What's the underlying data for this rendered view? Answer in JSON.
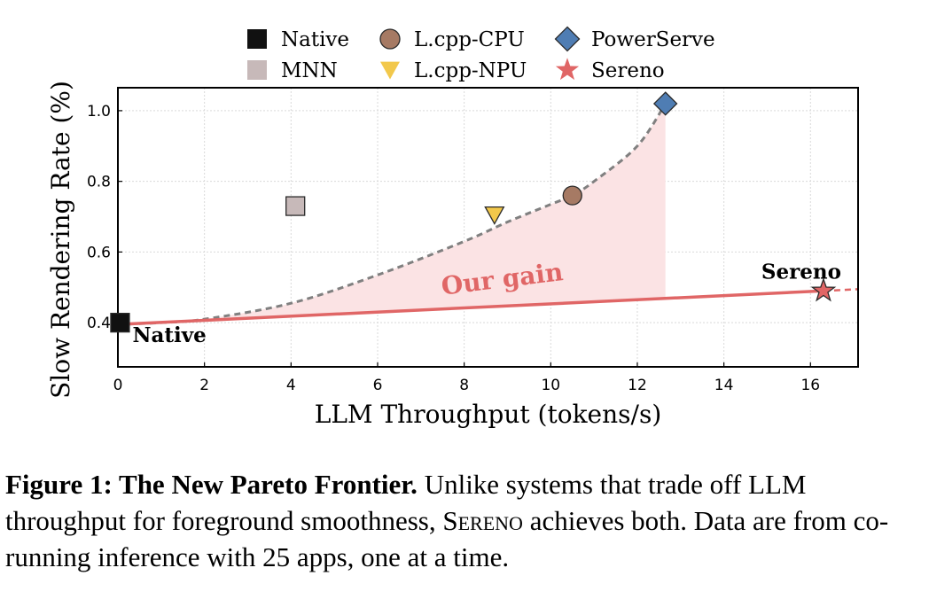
{
  "chart_data": {
    "type": "scatter",
    "xlabel": "LLM Throughput (tokens/s)",
    "ylabel": "Slow Rendering Rate (%)",
    "xlim": [
      0,
      17.1
    ],
    "ylim": [
      0.275,
      1.065
    ],
    "xticks": [
      "0",
      "2",
      "4",
      "6",
      "8",
      "10",
      "12",
      "14",
      "16"
    ],
    "yticks": [
      "0.4",
      "0.6",
      "0.8",
      "1.0"
    ],
    "grid": true,
    "legend_position": "top",
    "series": [
      {
        "name": "Native",
        "marker": "square",
        "color": "#111111",
        "x": 0.05,
        "y": 0.4
      },
      {
        "name": "MNN",
        "marker": "square",
        "color": "#c7b9b9",
        "x": 4.1,
        "y": 0.73
      },
      {
        "name": "L.cpp-CPU",
        "marker": "circle",
        "color": "#a67a64",
        "x": 10.5,
        "y": 0.76
      },
      {
        "name": "L.cpp-NPU",
        "marker": "triangle-down",
        "color": "#f2c84b",
        "x": 8.7,
        "y": 0.705
      },
      {
        "name": "PowerServe",
        "marker": "diamond",
        "color": "#4f7db3",
        "x": 12.65,
        "y": 1.02
      },
      {
        "name": "Sereno",
        "marker": "star",
        "color": "#e06666",
        "x": 16.3,
        "y": 0.49
      }
    ],
    "frontier_old": {
      "x": [
        0,
        1,
        2,
        4,
        6,
        8,
        9,
        10,
        10.5,
        11,
        12,
        12.65
      ],
      "y": [
        0.395,
        0.4,
        0.41,
        0.455,
        0.535,
        0.63,
        0.685,
        0.735,
        0.76,
        0.8,
        0.9,
        1.02
      ]
    },
    "frontier_new": {
      "x": [
        0,
        16.3
      ],
      "y": [
        0.395,
        0.49
      ],
      "extend_to_x": 17.1
    },
    "annotations": {
      "native": "Native",
      "sereno": "Sereno",
      "gain": "Our gain"
    },
    "colors": {
      "old_frontier": "#808080",
      "new_frontier": "#e06666",
      "gain_fill": "#fbe3e4"
    }
  },
  "caption": {
    "head": "Figure 1: The New Pareto Frontier.",
    "text_before": "Unlike systems that trade off LLM throughput for foreground smoothness,",
    "system_name": "Sereno",
    "text_after": "achieves both. Data are from co-running inference with 25 apps, one at a time."
  }
}
